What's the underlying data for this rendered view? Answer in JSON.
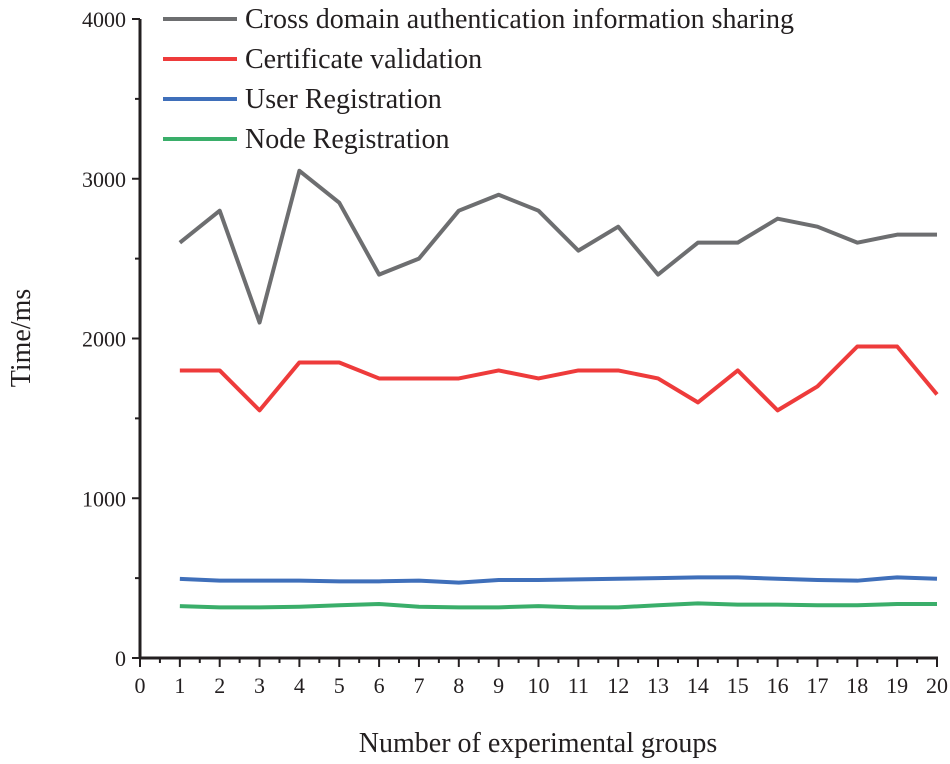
{
  "chart_data": {
    "type": "line",
    "xlabel": "Number of experimental groups",
    "ylabel": "Time/ms",
    "xlim": [
      0,
      20
    ],
    "ylim": [
      0,
      4000
    ],
    "x_ticks": [
      0,
      1,
      2,
      3,
      4,
      5,
      6,
      7,
      8,
      9,
      10,
      11,
      12,
      13,
      14,
      15,
      16,
      17,
      18,
      19,
      20
    ],
    "y_ticks": [
      0,
      1000,
      2000,
      3000,
      4000
    ],
    "grid": false,
    "legend_position": "top-left",
    "x": [
      1,
      2,
      3,
      4,
      5,
      6,
      7,
      8,
      9,
      10,
      11,
      12,
      13,
      14,
      15,
      16,
      17,
      18,
      19,
      20
    ],
    "series": [
      {
        "name": "Cross domain authentication information sharing",
        "color": "#6d6e70",
        "values": [
          2600,
          2800,
          2100,
          3050,
          2850,
          2400,
          2500,
          2800,
          2900,
          2800,
          2550,
          2700,
          2400,
          2600,
          2600,
          2750,
          2700,
          2600,
          2650,
          2650
        ]
      },
      {
        "name": "Certificate validation",
        "color": "#ee3b3b",
        "values": [
          1800,
          1800,
          1550,
          1850,
          1850,
          1750,
          1750,
          1750,
          1800,
          1750,
          1800,
          1800,
          1750,
          1600,
          1800,
          1550,
          1700,
          1950,
          1950,
          1650
        ]
      },
      {
        "name": "User Registration",
        "color": "#3f6fba",
        "values": [
          495,
          484,
          484,
          484,
          480,
          480,
          484,
          472,
          488,
          488,
          492,
          496,
          500,
          505,
          505,
          496,
          488,
          484,
          505,
          496
        ]
      },
      {
        "name": "Node Registration",
        "color": "#3aae6a",
        "values": [
          325,
          317,
          317,
          321,
          330,
          338,
          321,
          317,
          317,
          325,
          317,
          317,
          330,
          342,
          334,
          334,
          330,
          330,
          338,
          338
        ]
      }
    ]
  }
}
